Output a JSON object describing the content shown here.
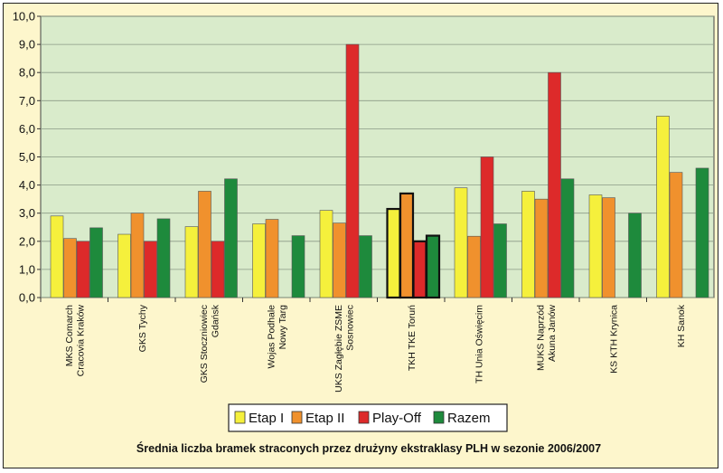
{
  "chart_data": {
    "type": "bar",
    "title": "Średnia liczba bramek straconych przez drużyny ekstraklasy PLH w sezonie 2006/2007",
    "ylim": [
      0,
      10
    ],
    "yticks": [
      "0,0",
      "1,0",
      "2,0",
      "3,0",
      "4,0",
      "5,0",
      "6,0",
      "7,0",
      "8,0",
      "9,0",
      "10,0"
    ],
    "grid": true,
    "legend_position": "bottom",
    "categories": [
      [
        "MKS Comarch",
        "Cracovia Kraków"
      ],
      [
        "GKS Tychy"
      ],
      [
        "GKS Stoczniowiec",
        "Gdańsk"
      ],
      [
        "Wojas Podhale",
        "Nowy Targ"
      ],
      [
        "UKS Zagłębie ZSME",
        "Sosnowiec"
      ],
      [
        "TKH TKE Toruń"
      ],
      [
        "TH Unia Oświęcim"
      ],
      [
        "MUKS Naprzód",
        "Akuna Janów"
      ],
      [
        "KS KTH Krynica"
      ],
      [
        "KH Sanok"
      ]
    ],
    "series": [
      {
        "name": "Etap I",
        "color": "#f5f03c",
        "values": [
          2.9,
          2.25,
          2.52,
          2.62,
          3.1,
          3.15,
          3.9,
          3.78,
          3.65,
          6.45
        ]
      },
      {
        "name": "Etap II",
        "color": "#f0912d",
        "values": [
          2.1,
          3.0,
          3.78,
          2.78,
          2.65,
          3.7,
          2.18,
          3.5,
          3.55,
          4.45
        ]
      },
      {
        "name": "Play-Off",
        "color": "#dd2a2a",
        "values": [
          2.0,
          2.0,
          2.0,
          null,
          9.0,
          2.0,
          5.0,
          8.0,
          null,
          null
        ]
      },
      {
        "name": "Razem",
        "color": "#1e8a3c",
        "values": [
          2.48,
          2.8,
          4.22,
          2.2,
          2.2,
          2.2,
          2.62,
          4.22,
          3.0,
          4.6
        ]
      }
    ],
    "highlighted_category_index": 5
  }
}
